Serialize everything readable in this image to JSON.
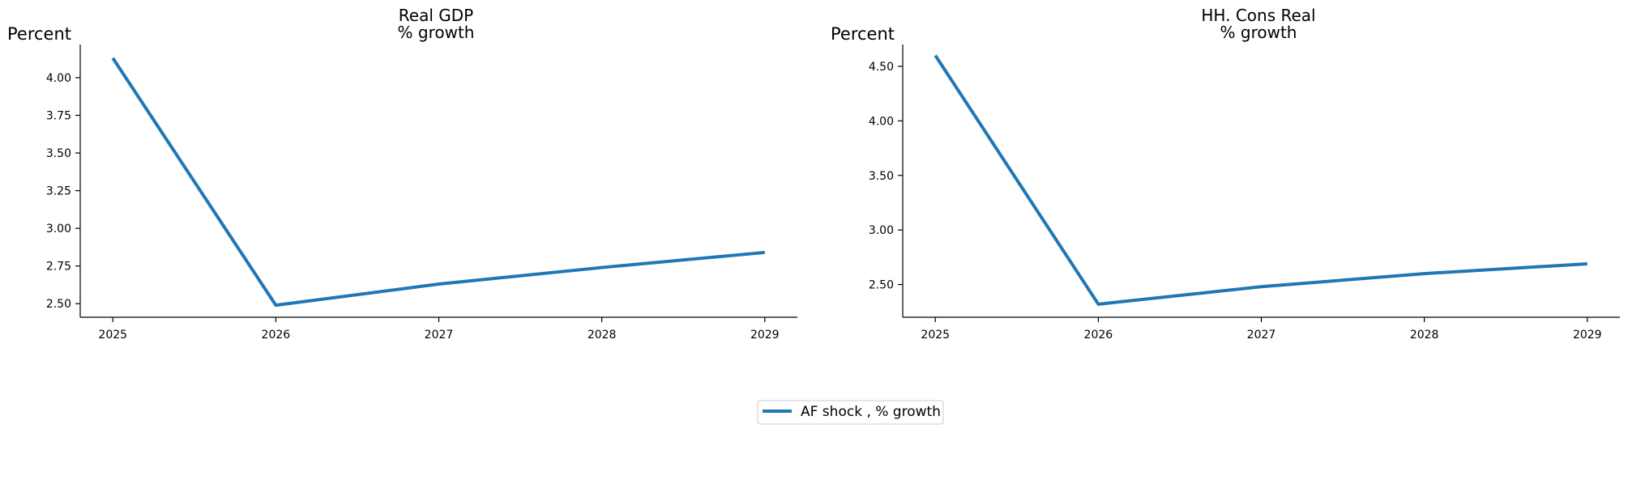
{
  "chart_data": [
    {
      "type": "line",
      "title_line1": "Real GDP",
      "title_line2": "% growth",
      "ylabel": "Percent",
      "xlabel": "",
      "x": [
        2025,
        2026,
        2027,
        2028,
        2029
      ],
      "xticks": [
        "2025",
        "2026",
        "2027",
        "2028",
        "2029"
      ],
      "xlim": [
        2024.8,
        2029.2
      ],
      "ylim": [
        2.41,
        4.22
      ],
      "yticks": [
        2.5,
        2.75,
        3.0,
        3.25,
        3.5,
        3.75,
        4.0
      ],
      "ytick_labels": [
        "2.50",
        "2.75",
        "3.00",
        "3.25",
        "3.50",
        "3.75",
        "4.00"
      ],
      "series": [
        {
          "name": "AF shock , % growth",
          "values": [
            4.13,
            2.49,
            2.63,
            2.74,
            2.84
          ],
          "color": "#1f77b4"
        }
      ],
      "grid": false
    },
    {
      "type": "line",
      "title_line1": "HH. Cons Real",
      "title_line2": "% growth",
      "ylabel": "Percent",
      "xlabel": "",
      "x": [
        2025,
        2026,
        2027,
        2028,
        2029
      ],
      "xticks": [
        "2025",
        "2026",
        "2027",
        "2028",
        "2029"
      ],
      "xlim": [
        2024.8,
        2029.2
      ],
      "ylim": [
        2.2,
        4.7
      ],
      "yticks": [
        2.5,
        3.0,
        3.5,
        4.0,
        4.5
      ],
      "ytick_labels": [
        "2.50",
        "3.00",
        "3.50",
        "4.00",
        "4.50"
      ],
      "series": [
        {
          "name": "AF shock , % growth",
          "values": [
            4.6,
            2.32,
            2.48,
            2.6,
            2.69
          ],
          "color": "#1f77b4"
        }
      ],
      "grid": false
    }
  ],
  "legend": {
    "label": "AF shock , % growth",
    "color": "#1f77b4",
    "position": "bottom-center"
  }
}
